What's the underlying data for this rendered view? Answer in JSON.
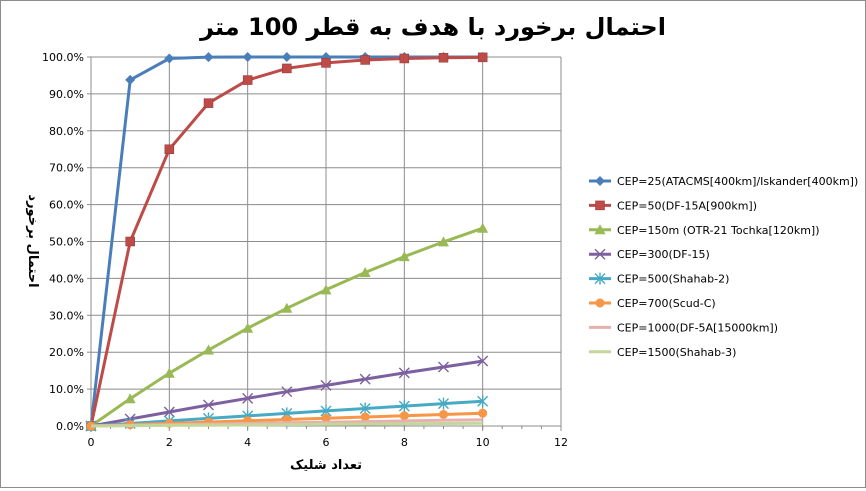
{
  "chart_data": {
    "type": "line",
    "title": "احتمال برخورد با هدف به قطر 100 متر",
    "xlabel": "تعداد شلیک",
    "ylabel": "احتمال برخورد",
    "xlim": [
      0,
      12
    ],
    "ylim": [
      0,
      1.0
    ],
    "x_ticks": [
      "0",
      "2",
      "4",
      "6",
      "8",
      "10",
      "12"
    ],
    "y_ticks": [
      "0.0%",
      "10.0%",
      "20.0%",
      "30.0%",
      "40.0%",
      "50.0%",
      "60.0%",
      "70.0%",
      "80.0%",
      "90.0%",
      "100.0%"
    ],
    "grid": "vertical and horizontal major gridlines",
    "legend_position": "right",
    "x": [
      0,
      1,
      2,
      3,
      4,
      5,
      6,
      7,
      8,
      9,
      10
    ],
    "series": [
      {
        "name": "CEP=25(ATACMS[400km]/Iskander[400km])",
        "color": "#4a7ebb",
        "marker": "diamond",
        "values": [
          0,
          0.938,
          0.996,
          0.9998,
          1.0,
          1.0,
          1.0,
          1.0,
          1.0,
          1.0,
          1.0
        ]
      },
      {
        "name": "CEP=50(DF-15A[900km])",
        "color": "#be4b48",
        "marker": "square",
        "values": [
          0,
          0.5,
          0.75,
          0.875,
          0.9375,
          0.969,
          0.984,
          0.992,
          0.996,
          0.998,
          0.999
        ]
      },
      {
        "name": "CEP=150m (OTR-21 Tochka[120km])",
        "color": "#98b954",
        "marker": "triangle",
        "values": [
          0,
          0.074,
          0.143,
          0.206,
          0.265,
          0.319,
          0.369,
          0.416,
          0.459,
          0.499,
          0.536
        ]
      },
      {
        "name": "CEP=300(DF-15)",
        "color": "#7d60a0",
        "marker": "x",
        "values": [
          0,
          0.019,
          0.038,
          0.057,
          0.075,
          0.093,
          0.11,
          0.127,
          0.144,
          0.16,
          0.176
        ]
      },
      {
        "name": "CEP=500(Shahab-2)",
        "color": "#46aac4",
        "marker": "star",
        "values": [
          0,
          0.0069,
          0.0138,
          0.0207,
          0.0274,
          0.0342,
          0.0408,
          0.0475,
          0.054,
          0.0606,
          0.067
        ]
      },
      {
        "name": "CEP=700(Scud-C)",
        "color": "#f79646",
        "marker": "circle",
        "values": [
          0,
          0.0035,
          0.0071,
          0.0106,
          0.0141,
          0.0176,
          0.021,
          0.0245,
          0.0279,
          0.0313,
          0.0347
        ]
      },
      {
        "name": "CEP=1000(DF-5A[15000km])",
        "color": "#e6b0ae",
        "marker": "none",
        "values": [
          0,
          0.0017,
          0.0035,
          0.0052,
          0.0069,
          0.0086,
          0.0103,
          0.012,
          0.0137,
          0.0154,
          0.0171
        ]
      },
      {
        "name": "CEP=1500(Shahab-3)",
        "color": "#c3d69b",
        "marker": "none",
        "values": [
          0,
          0.0008,
          0.0015,
          0.0023,
          0.0031,
          0.0038,
          0.0046,
          0.0054,
          0.0061,
          0.0069,
          0.0077
        ]
      }
    ]
  }
}
